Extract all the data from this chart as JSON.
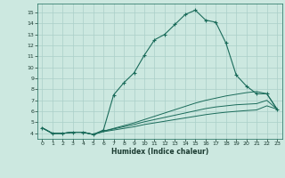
{
  "xlabel": "Humidex (Indice chaleur)",
  "bg_color": "#cce8e0",
  "line_color": "#1a6b5a",
  "grid_color": "#aacfc8",
  "xlim": [
    -0.5,
    23.5
  ],
  "ylim": [
    3.5,
    15.8
  ],
  "xticks": [
    0,
    1,
    2,
    3,
    4,
    5,
    6,
    7,
    8,
    9,
    10,
    11,
    12,
    13,
    14,
    15,
    16,
    17,
    18,
    19,
    20,
    21,
    22,
    23
  ],
  "yticks": [
    4,
    5,
    6,
    7,
    8,
    9,
    10,
    11,
    12,
    13,
    14,
    15
  ],
  "series": [
    {
      "x": [
        0,
        1,
        2,
        3,
        4,
        5,
        6,
        7,
        8,
        9,
        10,
        11,
        12,
        13,
        14,
        15,
        16,
        17,
        18,
        19,
        20,
        21,
        22,
        23
      ],
      "y": [
        4.5,
        4.0,
        4.0,
        4.1,
        4.1,
        3.9,
        4.3,
        7.5,
        8.6,
        9.5,
        11.1,
        12.5,
        13.0,
        13.9,
        14.8,
        15.2,
        14.3,
        14.1,
        12.2,
        9.3,
        8.3,
        7.6,
        7.6,
        6.2
      ],
      "marker": "+"
    },
    {
      "x": [
        0,
        1,
        2,
        3,
        4,
        5,
        6,
        7,
        8,
        9,
        10,
        11,
        12,
        13,
        14,
        15,
        16,
        17,
        18,
        19,
        20,
        21,
        22,
        23
      ],
      "y": [
        4.5,
        4.0,
        4.0,
        4.1,
        4.1,
        3.9,
        4.2,
        4.45,
        4.7,
        4.95,
        5.25,
        5.55,
        5.85,
        6.15,
        6.45,
        6.75,
        7.0,
        7.2,
        7.4,
        7.55,
        7.7,
        7.8,
        7.6,
        6.2
      ],
      "marker": null
    },
    {
      "x": [
        0,
        1,
        2,
        3,
        4,
        5,
        6,
        7,
        8,
        9,
        10,
        11,
        12,
        13,
        14,
        15,
        16,
        17,
        18,
        19,
        20,
        21,
        22,
        23
      ],
      "y": [
        4.5,
        4.0,
        4.0,
        4.1,
        4.1,
        3.9,
        4.2,
        4.4,
        4.6,
        4.8,
        5.05,
        5.25,
        5.45,
        5.65,
        5.85,
        6.05,
        6.25,
        6.4,
        6.5,
        6.6,
        6.65,
        6.7,
        7.0,
        6.2
      ],
      "marker": null
    },
    {
      "x": [
        0,
        1,
        2,
        3,
        4,
        5,
        6,
        7,
        8,
        9,
        10,
        11,
        12,
        13,
        14,
        15,
        16,
        17,
        18,
        19,
        20,
        21,
        22,
        23
      ],
      "y": [
        4.5,
        4.0,
        4.0,
        4.1,
        4.1,
        3.9,
        4.15,
        4.3,
        4.45,
        4.6,
        4.8,
        4.95,
        5.1,
        5.25,
        5.4,
        5.55,
        5.7,
        5.82,
        5.92,
        6.0,
        6.07,
        6.13,
        6.5,
        6.2
      ],
      "marker": null
    }
  ]
}
